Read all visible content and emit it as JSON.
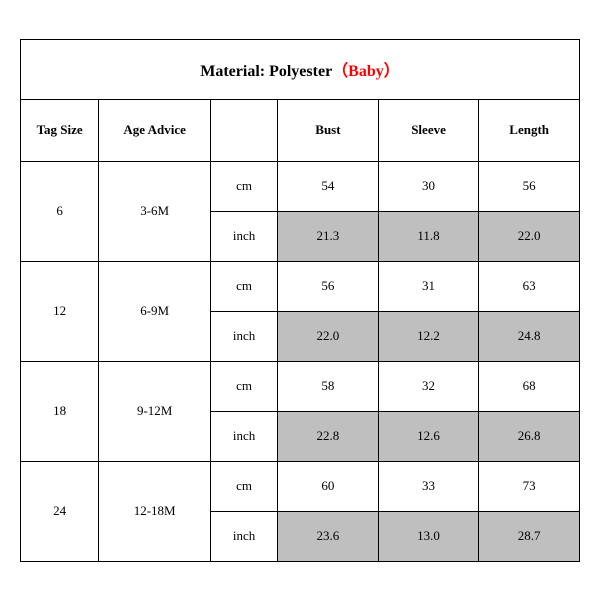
{
  "title": {
    "label": "Material: Polyester",
    "highlight": "（Baby）",
    "label_color": "#000000",
    "highlight_color": "#ff0000",
    "fontsize": 16,
    "fontweight": "bold"
  },
  "columns": {
    "tag_size": "Tag Size",
    "age_advice": "Age Advice",
    "unit": "",
    "bust": "Bust",
    "sleeve": "Sleeve",
    "length": "Length"
  },
  "unit_labels": {
    "cm": "cm",
    "inch": "inch"
  },
  "shaded_bg": "#bfbfbf",
  "border_color": "#000000",
  "rows": [
    {
      "tag_size": "6",
      "age_advice": "3-6M",
      "cm": {
        "bust": "54",
        "sleeve": "30",
        "length": "56"
      },
      "inch": {
        "bust": "21.3",
        "sleeve": "11.8",
        "length": "22.0"
      }
    },
    {
      "tag_size": "12",
      "age_advice": "6-9M",
      "cm": {
        "bust": "56",
        "sleeve": "31",
        "length": "63"
      },
      "inch": {
        "bust": "22.0",
        "sleeve": "12.2",
        "length": "24.8"
      }
    },
    {
      "tag_size": "18",
      "age_advice": "9-12M",
      "cm": {
        "bust": "58",
        "sleeve": "32",
        "length": "68"
      },
      "inch": {
        "bust": "22.8",
        "sleeve": "12.6",
        "length": "26.8"
      }
    },
    {
      "tag_size": "24",
      "age_advice": "12-18M",
      "cm": {
        "bust": "60",
        "sleeve": "33",
        "length": "73"
      },
      "inch": {
        "bust": "23.6",
        "sleeve": "13.0",
        "length": "28.7"
      }
    }
  ],
  "column_widths_pct": {
    "tag_size": 14,
    "age_advice": 20,
    "unit": 12,
    "value": 18
  },
  "font_family": "Times New Roman",
  "cell_fontsize": 13,
  "header_fontsize": 13
}
